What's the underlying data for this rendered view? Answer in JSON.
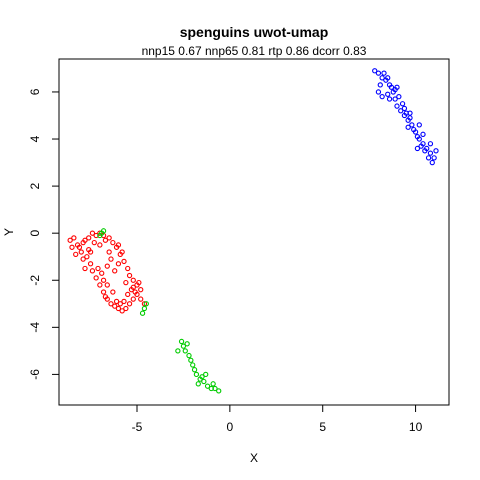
{
  "chart_data": {
    "type": "scatter",
    "title": "spenguins uwot-umap",
    "subtitle": "nnp15 0.67 nnp65 0.81 rtp 0.86 dcorr 0.83",
    "xlabel": "X",
    "ylabel": "Y",
    "xlim": [
      -9.2,
      11.8
    ],
    "ylim": [
      -7.3,
      7.4
    ],
    "xticks": [
      -5,
      0,
      5,
      10
    ],
    "yticks": [
      -6,
      -4,
      -2,
      0,
      2,
      4,
      6
    ],
    "grid": false,
    "legend": "none",
    "series": [
      {
        "color": "#ff0000",
        "points": [
          [
            -8.6,
            -0.3
          ],
          [
            -8.4,
            -0.2
          ],
          [
            -8.2,
            -0.5
          ],
          [
            -8.0,
            -0.8
          ],
          [
            -7.9,
            -0.4
          ],
          [
            -7.7,
            -1.0
          ],
          [
            -7.5,
            -1.3
          ],
          [
            -7.4,
            -1.6
          ],
          [
            -7.2,
            -1.9
          ],
          [
            -7.0,
            -2.2
          ],
          [
            -6.8,
            -2.5
          ],
          [
            -6.6,
            -2.8
          ],
          [
            -6.4,
            -3.0
          ],
          [
            -6.2,
            -3.1
          ],
          [
            -6.0,
            -3.2
          ],
          [
            -5.8,
            -3.3
          ],
          [
            -5.6,
            -3.2
          ],
          [
            -5.4,
            -3.0
          ],
          [
            -5.2,
            -2.8
          ],
          [
            -5.0,
            -2.6
          ],
          [
            -4.8,
            -2.8
          ],
          [
            -4.6,
            -3.0
          ],
          [
            -4.8,
            -2.4
          ],
          [
            -5.0,
            -2.2
          ],
          [
            -5.2,
            -2.0
          ],
          [
            -5.4,
            -1.8
          ],
          [
            -5.5,
            -1.5
          ],
          [
            -5.7,
            -1.2
          ],
          [
            -5.9,
            -0.9
          ],
          [
            -6.1,
            -0.6
          ],
          [
            -6.3,
            -0.4
          ],
          [
            -6.5,
            -0.2
          ],
          [
            -6.8,
            -0.1
          ],
          [
            -7.0,
            0.0
          ],
          [
            -7.2,
            -0.1
          ],
          [
            -7.4,
            0.0
          ],
          [
            -7.6,
            -0.2
          ],
          [
            -7.8,
            -0.3
          ],
          [
            -8.1,
            -0.6
          ],
          [
            -8.3,
            -0.9
          ],
          [
            -7.9,
            -1.1
          ],
          [
            -7.6,
            -0.7
          ],
          [
            -7.3,
            -0.4
          ],
          [
            -7.0,
            -0.5
          ],
          [
            -6.7,
            -0.3
          ],
          [
            -6.5,
            -0.8
          ],
          [
            -6.4,
            -1.1
          ],
          [
            -6.6,
            -1.4
          ],
          [
            -6.9,
            -1.7
          ],
          [
            -7.1,
            -1.5
          ],
          [
            -6.8,
            -2.0
          ],
          [
            -6.6,
            -2.2
          ],
          [
            -6.3,
            -2.5
          ],
          [
            -6.1,
            -2.9
          ],
          [
            -5.9,
            -3.0
          ],
          [
            -5.7,
            -2.9
          ],
          [
            -5.5,
            -2.6
          ],
          [
            -5.3,
            -2.4
          ],
          [
            -5.1,
            -2.5
          ],
          [
            -4.9,
            -2.1
          ],
          [
            -5.2,
            -2.3
          ],
          [
            -6.2,
            -1.6
          ],
          [
            -6.0,
            -1.3
          ],
          [
            -5.8,
            -0.8
          ],
          [
            -6.0,
            -0.5
          ],
          [
            -7.5,
            -0.8
          ],
          [
            -8.5,
            -0.6
          ],
          [
            -7.8,
            -1.5
          ],
          [
            -6.7,
            -2.7
          ],
          [
            -5.6,
            -2.1
          ]
        ]
      },
      {
        "color": "#00cc00",
        "points": [
          [
            -6.9,
            0.0
          ],
          [
            -6.8,
            0.1
          ],
          [
            -7.0,
            -0.1
          ],
          [
            -4.5,
            -3.0
          ],
          [
            -4.6,
            -3.2
          ],
          [
            -4.7,
            -3.4
          ],
          [
            -2.6,
            -4.6
          ],
          [
            -2.5,
            -4.8
          ],
          [
            -2.4,
            -5.0
          ],
          [
            -2.8,
            -5.0
          ],
          [
            -2.2,
            -5.2
          ],
          [
            -2.0,
            -5.6
          ],
          [
            -1.9,
            -5.8
          ],
          [
            -1.8,
            -6.0
          ],
          [
            -1.6,
            -6.2
          ],
          [
            -1.4,
            -6.3
          ],
          [
            -1.2,
            -6.5
          ],
          [
            -1.0,
            -6.6
          ],
          [
            -0.8,
            -6.6
          ],
          [
            -0.6,
            -6.7
          ],
          [
            -1.3,
            -6.0
          ],
          [
            -1.7,
            -6.4
          ],
          [
            -2.3,
            -4.7
          ],
          [
            -2.1,
            -5.4
          ],
          [
            -1.5,
            -6.1
          ],
          [
            -0.9,
            -6.4
          ]
        ]
      },
      {
        "color": "#0000ff",
        "points": [
          [
            7.8,
            6.9
          ],
          [
            8.0,
            6.8
          ],
          [
            8.2,
            6.6
          ],
          [
            8.4,
            6.5
          ],
          [
            8.6,
            6.3
          ],
          [
            8.8,
            6.0
          ],
          [
            8.9,
            5.7
          ],
          [
            9.0,
            5.4
          ],
          [
            9.2,
            5.2
          ],
          [
            9.4,
            5.0
          ],
          [
            9.6,
            4.8
          ],
          [
            9.8,
            4.6
          ],
          [
            10.0,
            4.3
          ],
          [
            10.2,
            4.0
          ],
          [
            10.4,
            3.8
          ],
          [
            10.6,
            3.6
          ],
          [
            10.8,
            3.4
          ],
          [
            11.0,
            3.2
          ],
          [
            10.9,
            3.0
          ],
          [
            10.7,
            3.2
          ],
          [
            10.5,
            3.5
          ],
          [
            10.3,
            3.7
          ],
          [
            10.1,
            4.1
          ],
          [
            9.9,
            4.4
          ],
          [
            9.7,
            4.9
          ],
          [
            9.5,
            5.1
          ],
          [
            9.3,
            5.5
          ],
          [
            9.1,
            5.8
          ],
          [
            8.9,
            6.1
          ],
          [
            8.7,
            6.2
          ],
          [
            8.5,
            6.6
          ],
          [
            8.3,
            6.8
          ],
          [
            8.1,
            6.3
          ],
          [
            8.0,
            6.0
          ],
          [
            8.2,
            5.8
          ],
          [
            8.5,
            5.9
          ],
          [
            9.4,
            5.3
          ],
          [
            9.7,
            5.1
          ],
          [
            10.2,
            4.6
          ],
          [
            10.4,
            4.2
          ],
          [
            10.8,
            3.8
          ],
          [
            11.1,
            3.5
          ],
          [
            9.6,
            4.5
          ],
          [
            9.0,
            6.2
          ],
          [
            8.6,
            5.7
          ],
          [
            10.1,
            3.6
          ]
        ]
      }
    ]
  }
}
